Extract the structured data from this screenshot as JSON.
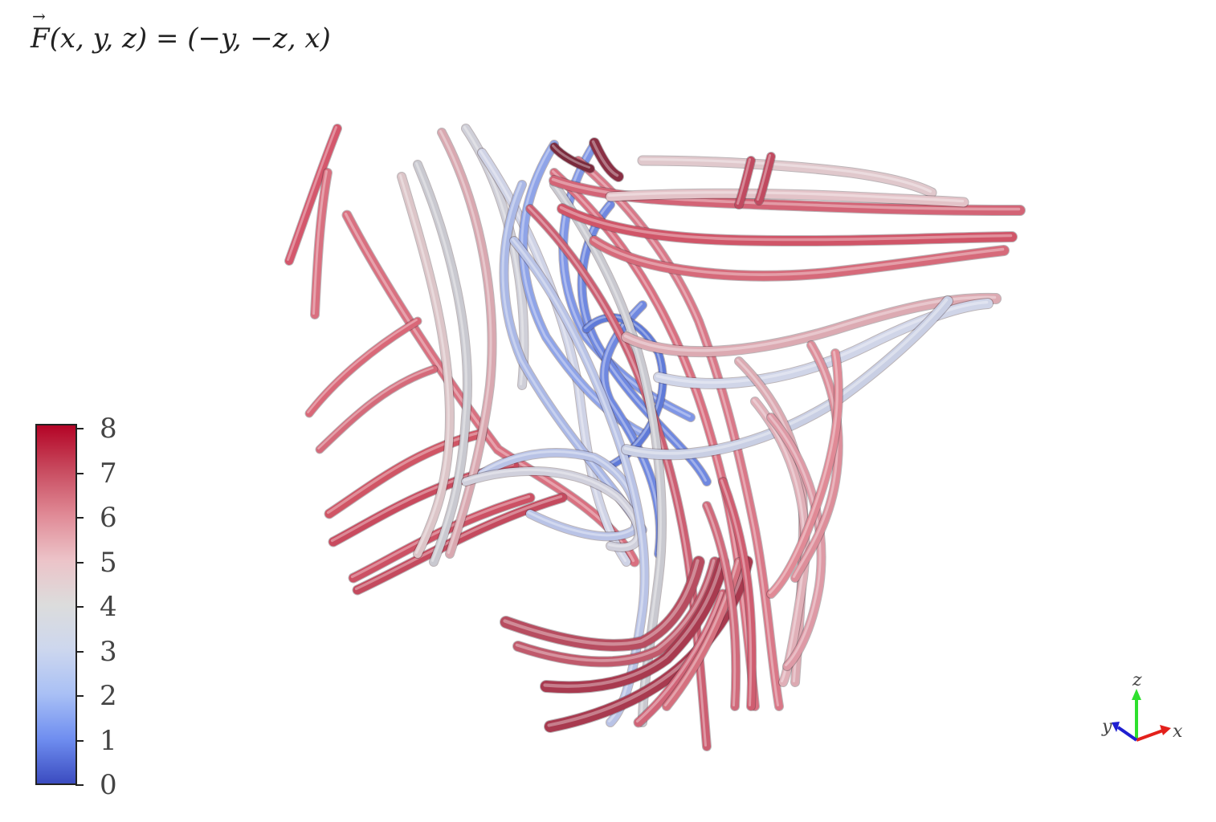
{
  "title": {
    "lhs_function": "F",
    "lhs_args": "(x, y, z)",
    "rhs": "= (−y,  −z,  x)"
  },
  "colorbar": {
    "ticks": [
      "0",
      "1",
      "2",
      "3",
      "4",
      "5",
      "6",
      "7",
      "8"
    ],
    "colors": [
      "#3b4cc0",
      "#dcdcdc",
      "#b40426"
    ]
  },
  "axes_widget": {
    "x_label": "x",
    "y_label": "y",
    "z_label": "z",
    "x_color": "#e3201b",
    "y_color": "#1f1fd0",
    "z_color": "#2ee02e"
  },
  "streamlines": {
    "count_approx": 60,
    "low_color": "#3b4cc0",
    "mid_color": "#dcdcdc",
    "high_color": "#b40426"
  }
}
